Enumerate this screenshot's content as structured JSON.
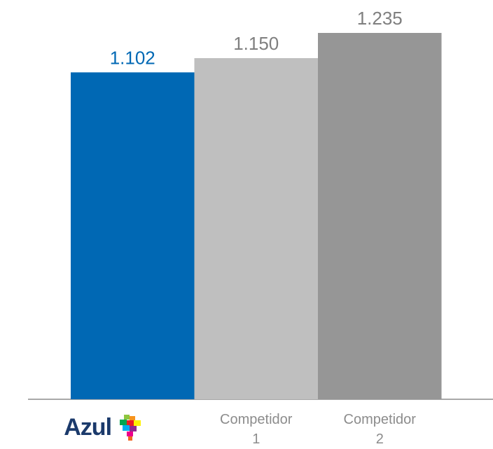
{
  "chart_data": {
    "type": "bar",
    "categories": [
      "Azul",
      "Competidor 1",
      "Competidor 2"
    ],
    "values": [
      1.102,
      1.15,
      1.235
    ],
    "value_labels": [
      "1.102",
      "1.150",
      "1.235"
    ],
    "colors": [
      "#0068b4",
      "#bfbfbf",
      "#969696"
    ],
    "label_colors": [
      "#0068b4",
      "#7f7f7f",
      "#7f7f7f"
    ]
  }
}
